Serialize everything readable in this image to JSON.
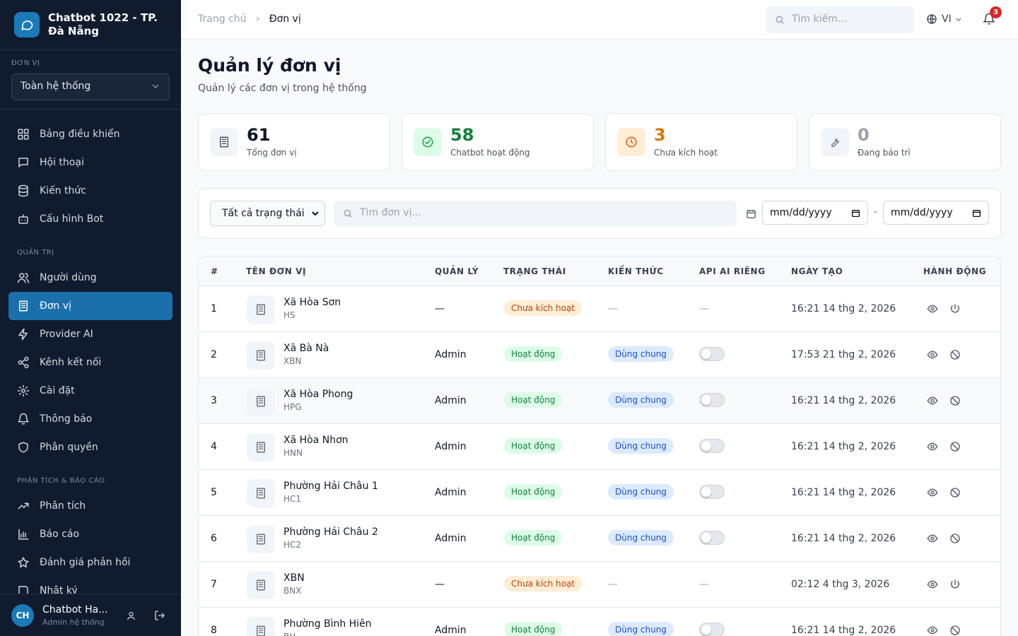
{
  "sidebar": {
    "brand": "Chatbot 1022 - TP. Đà Nẵng",
    "unit_label": "ĐƠN VỊ",
    "unit_select": "Toàn hệ thống",
    "main_items": [
      "Bảng điều khiển",
      "Hội thoại",
      "Kiến thức",
      "Cấu hình Bot"
    ],
    "admin_title": "QUẢN TRỊ",
    "admin_items": [
      "Người dùng",
      "Đơn vị",
      "Provider AI",
      "Kênh kết nối",
      "Cài đặt",
      "Thông báo",
      "Phân quyền"
    ],
    "report_title": "PHÂN TÍCH & BÁO CÁO",
    "report_items": [
      "Phân tích",
      "Báo cáo",
      "Đánh giá phản hồi",
      "Nhật ký"
    ],
    "user": {
      "initials": "CH",
      "name": "Chatbot Ha...",
      "role": "Admin hệ thống"
    }
  },
  "header": {
    "breadcrumb": [
      "Trang chủ",
      "Đơn vị"
    ],
    "search": "Tìm kiếm...",
    "lang": "VI",
    "notifications": "3"
  },
  "page": {
    "title": "Quản lý đơn vị",
    "subtitle": "Quản lý các đơn vị trong hệ thống"
  },
  "stats": [
    {
      "value": "61",
      "label": "Tổng đơn vị"
    },
    {
      "value": "58",
      "label": "Chatbot hoạt động"
    },
    {
      "value": "3",
      "label": "Chưa kích hoạt"
    },
    {
      "value": "0",
      "label": "Đang bảo trì"
    }
  ],
  "filters": {
    "status": "Tất cả trạng thái",
    "search": "Tìm đơn vị...",
    "date_from": "mm/dd/yyyy",
    "separator": "-",
    "date_to": "mm/dd/yyyy"
  },
  "table": {
    "headers": [
      "#",
      "TÊN ĐƠN VỊ",
      "QUẢN LÝ",
      "TRẠNG THÁI",
      "KIẾN THỨC",
      "API AI RIÊNG",
      "NGÀY TẠO",
      "HÀNH ĐỘNG"
    ],
    "rows": [
      {
        "index": "1",
        "name": "Xã Hòa Sơn",
        "code": "HS",
        "manager": "—",
        "status": "Chưa kích hoạt",
        "knowledge": "—",
        "api": "—",
        "created": "16:21 14 thg 2, 2026"
      },
      {
        "index": "2",
        "name": "Xã Bà Nà",
        "code": "XBN",
        "manager": "Admin",
        "status": "Hoạt động",
        "knowledge": "Dùng chung",
        "created": "17:53 21 thg 2, 2026"
      },
      {
        "index": "3",
        "name": "Xã Hòa Phong",
        "code": "HPG",
        "manager": "Admin",
        "status": "Hoạt động",
        "knowledge": "Dùng chung",
        "created": "16:21 14 thg 2, 2026"
      },
      {
        "index": "4",
        "name": "Xã Hòa Nhơn",
        "code": "HNN",
        "manager": "Admin",
        "status": "Hoạt động",
        "knowledge": "Dùng chung",
        "created": "16:21 14 thg 2, 2026"
      },
      {
        "index": "5",
        "name": "Phường Hải Châu 1",
        "code": "HC1",
        "manager": "Admin",
        "status": "Hoạt động",
        "knowledge": "Dùng chung",
        "created": "16:21 14 thg 2, 2026"
      },
      {
        "index": "6",
        "name": "Phường Hải Châu 2",
        "code": "HC2",
        "manager": "Admin",
        "status": "Hoạt động",
        "knowledge": "Dùng chung",
        "created": "16:21 14 thg 2, 2026"
      },
      {
        "index": "7",
        "name": "XBN",
        "code": "BNX",
        "manager": "—",
        "status": "Chưa kích hoạt",
        "knowledge": "—",
        "api": "—",
        "created": "02:12 4 thg 3, 2026"
      },
      {
        "index": "8",
        "name": "Phường Bình Hiên",
        "code": "BH",
        "manager": "Admin",
        "status": "Hoạt động",
        "knowledge": "Dùng chung",
        "created": "16:21 14 thg 2, 2026"
      }
    ]
  }
}
